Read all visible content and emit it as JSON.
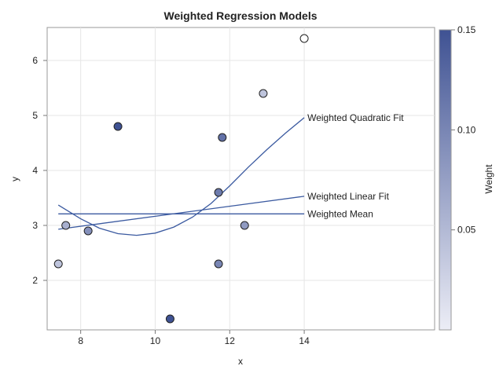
{
  "chart_data": {
    "type": "scatter",
    "title": "Weighted Regression Models",
    "xlabel": "x",
    "ylabel": "y",
    "xlim": [
      7.1,
      17.5
    ],
    "ylim": [
      1.1,
      6.6
    ],
    "x_ticks": [
      8,
      10,
      12,
      14
    ],
    "y_ticks": [
      2,
      3,
      4,
      5,
      6
    ],
    "grid": true,
    "colorbar": {
      "label": "Weight",
      "range": [
        0.0,
        0.15
      ],
      "ticks": [
        0.05,
        0.1,
        0.15
      ],
      "tick_labels": [
        "0.05",
        "0.10",
        "0.15"
      ],
      "color_low": "#ecedf6",
      "color_high": "#3f5293"
    },
    "points": [
      {
        "x": 7.4,
        "y": 2.3,
        "weight": 0.04
      },
      {
        "x": 7.6,
        "y": 3.0,
        "weight": 0.06
      },
      {
        "x": 8.2,
        "y": 2.9,
        "weight": 0.09
      },
      {
        "x": 9.0,
        "y": 4.8,
        "weight": 0.15
      },
      {
        "x": 10.4,
        "y": 1.3,
        "weight": 0.15
      },
      {
        "x": 11.7,
        "y": 2.3,
        "weight": 0.1
      },
      {
        "x": 11.7,
        "y": 3.6,
        "weight": 0.11
      },
      {
        "x": 11.8,
        "y": 4.6,
        "weight": 0.12
      },
      {
        "x": 12.4,
        "y": 3.0,
        "weight": 0.08
      },
      {
        "x": 12.9,
        "y": 5.4,
        "weight": 0.04
      },
      {
        "x": 14.0,
        "y": 6.4,
        "weight": 0.0
      }
    ],
    "series": [
      {
        "name": "Weighted Quadratic Fit",
        "x": [
          7.4,
          8.0,
          8.5,
          9.0,
          9.5,
          10.0,
          10.5,
          11.0,
          11.5,
          12.0,
          12.5,
          13.0,
          13.5,
          14.0
        ],
        "y": [
          3.37,
          3.12,
          2.95,
          2.85,
          2.82,
          2.86,
          2.97,
          3.15,
          3.4,
          3.72,
          4.06,
          4.38,
          4.68,
          4.96
        ]
      },
      {
        "name": "Weighted Linear Fit",
        "x": [
          7.4,
          14.0
        ],
        "y": [
          2.93,
          3.53
        ]
      },
      {
        "name": "Weighted Mean",
        "x": [
          7.4,
          14.0
        ],
        "y": [
          3.21,
          3.21
        ]
      }
    ],
    "line_color": "#3b5aa0"
  }
}
